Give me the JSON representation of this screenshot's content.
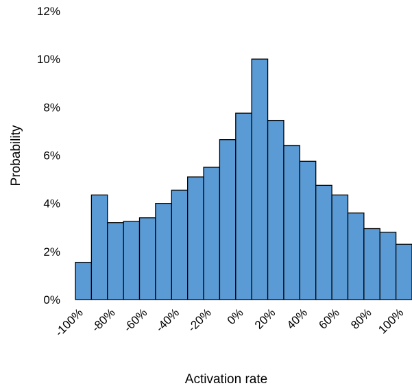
{
  "chart_data": {
    "type": "bar",
    "xlabel": "Activation rate",
    "ylabel": "Probability",
    "ylim": [
      0,
      12
    ],
    "y_ticks": [
      "0%",
      "2%",
      "4%",
      "6%",
      "8%",
      "10%",
      "12%"
    ],
    "y_tick_values": [
      0,
      2,
      4,
      6,
      8,
      10,
      12
    ],
    "x_ticks": [
      "-100%",
      "-80%",
      "-60%",
      "-40%",
      "-20%",
      "0%",
      "20%",
      "40%",
      "60%",
      "80%",
      "100%"
    ],
    "x_tick_values": [
      -100,
      -80,
      -60,
      -40,
      -20,
      0,
      20,
      40,
      60,
      80,
      100
    ],
    "bin_width": 10,
    "bins_start": [
      -100,
      -90,
      -80,
      -70,
      -60,
      -50,
      -40,
      -30,
      -20,
      -10,
      0,
      10,
      20,
      30,
      40,
      50,
      60,
      70,
      80,
      90,
      100
    ],
    "values": [
      1.55,
      4.35,
      3.2,
      3.25,
      3.4,
      4.0,
      4.55,
      5.1,
      5.5,
      6.65,
      7.75,
      10.0,
      7.45,
      6.4,
      5.75,
      4.75,
      4.35,
      3.6,
      2.95,
      2.8,
      2.3
    ],
    "bar_color": "#5b9bd5",
    "bar_stroke": "#000000",
    "grid": false
  }
}
